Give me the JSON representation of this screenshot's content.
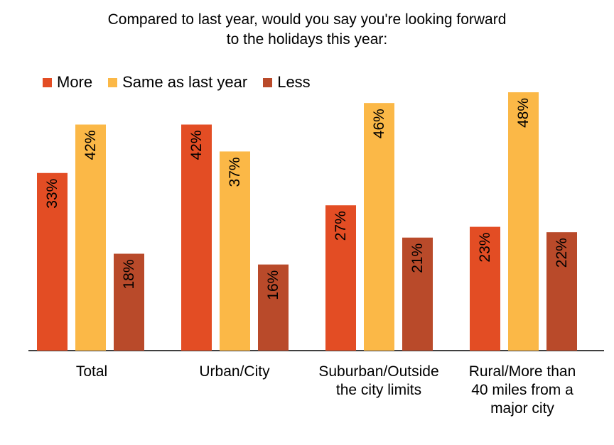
{
  "chart_data": {
    "type": "bar",
    "title_lines": [
      "Compared to last year, would you say you're looking forward",
      "to the holidays this year:"
    ],
    "xlabel": "",
    "ylabel": "",
    "ylim": [
      0,
      50
    ],
    "grid": false,
    "legend_position": "top-left",
    "categories": [
      "Total",
      "Urban/City",
      "Suburban/Outside the city limits",
      "Rural/More than 40 miles from a major city"
    ],
    "category_display": [
      "Total",
      "Urban/City",
      "Suburban/Outside\nthe city limits",
      "Rural/More than\n40 miles from a\nmajor city"
    ],
    "series": [
      {
        "name": "More",
        "color": "#E34D24",
        "values": [
          33,
          42,
          27,
          23
        ],
        "labels": [
          "33%",
          "42%",
          "27%",
          "23%"
        ]
      },
      {
        "name": "Same as last year",
        "color": "#FBB847",
        "values": [
          42,
          37,
          46,
          48
        ],
        "labels": [
          "42%",
          "37%",
          "46%",
          "48%"
        ]
      },
      {
        "name": "Less",
        "color": "#B94A2A",
        "values": [
          18,
          16,
          21,
          22
        ],
        "labels": [
          "18%",
          "16%",
          "21%",
          "22%"
        ]
      }
    ]
  }
}
